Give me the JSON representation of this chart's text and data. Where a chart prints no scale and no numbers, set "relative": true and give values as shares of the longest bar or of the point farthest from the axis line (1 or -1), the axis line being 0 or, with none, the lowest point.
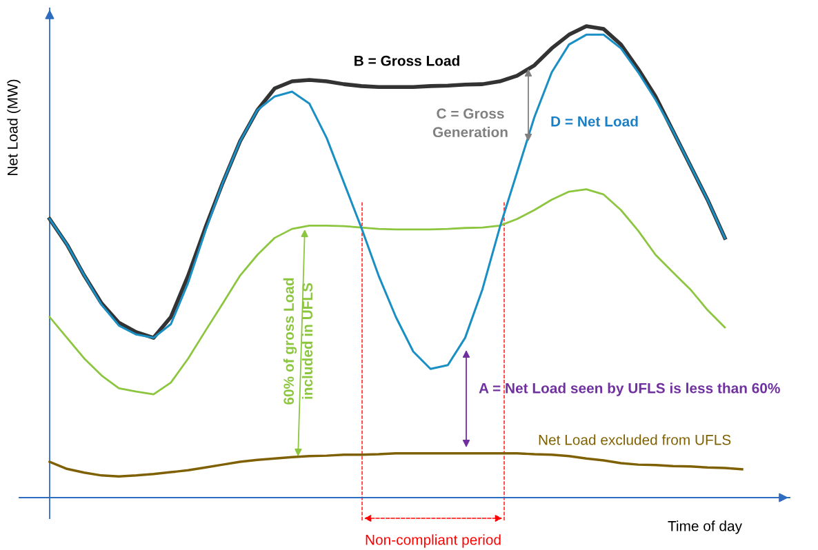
{
  "chart_data": {
    "type": "line",
    "relative": true,
    "xlabel": "Time of day",
    "ylabel": "Net Load (MW)",
    "categories": [
      null,
      null,
      null,
      null,
      null,
      null,
      null,
      null,
      null,
      null,
      null,
      null,
      null,
      null,
      null,
      null,
      null,
      null,
      null,
      null,
      null,
      null,
      null,
      null,
      null,
      null,
      null,
      null,
      null,
      null,
      null,
      null,
      null,
      null,
      null,
      null,
      null,
      null,
      null,
      null,
      null
    ],
    "series": [
      {
        "color": "#333333",
        "values": [
          0.591,
          0.537,
          0.471,
          0.412,
          0.371,
          0.351,
          0.339,
          0.383,
          0.471,
          0.573,
          0.668,
          0.756,
          0.822,
          0.868,
          0.883,
          0.886,
          0.883,
          0.877,
          0.873,
          0.871,
          0.871,
          0.871,
          0.873,
          0.874,
          0.876,
          0.877,
          0.883,
          0.895,
          0.917,
          0.953,
          0.982,
          1,
          0.994,
          0.961,
          0.909,
          0.851,
          0.778,
          0.705,
          0.632,
          0.551,
          null
        ]
      },
      {
        "color": "#1a8fc4",
        "values": [
          0.591,
          0.537,
          0.471,
          0.409,
          0.365,
          0.346,
          0.339,
          0.368,
          0.456,
          0.566,
          0.668,
          0.756,
          0.822,
          0.851,
          0.861,
          0.836,
          0.763,
          0.668,
          0.573,
          0.471,
          0.383,
          0.31,
          0.273,
          0.281,
          0.339,
          0.442,
          0.573,
          0.69,
          0.807,
          0.902,
          0.961,
          0.982,
          0.982,
          0.953,
          0.902,
          0.844,
          0.778,
          0.705,
          0.632,
          0.551,
          null
        ]
      },
      {
        "color": "#8cc63f",
        "values": [
          0.383,
          0.339,
          0.295,
          0.259,
          0.232,
          0.225,
          0.219,
          0.244,
          0.295,
          0.354,
          0.412,
          0.471,
          0.515,
          0.551,
          0.57,
          0.577,
          0.577,
          0.576,
          0.573,
          0.57,
          0.569,
          0.569,
          0.569,
          0.57,
          0.572,
          0.573,
          0.577,
          0.591,
          0.61,
          0.632,
          0.649,
          0.654,
          0.643,
          0.61,
          0.566,
          0.515,
          0.478,
          0.442,
          0.398,
          0.361,
          null
        ]
      },
      {
        "color": "#7f6000",
        "values": [
          0.076,
          0.061,
          0.053,
          0.047,
          0.045,
          0.047,
          0.05,
          0.054,
          0.058,
          0.064,
          0.07,
          0.076,
          0.08,
          0.083,
          0.086,
          0.088,
          0.089,
          0.091,
          0.091,
          0.092,
          0.094,
          0.094,
          0.094,
          0.094,
          0.094,
          0.094,
          0.094,
          0.094,
          0.092,
          0.091,
          0.088,
          0.083,
          0.079,
          0.073,
          0.07,
          0.069,
          0.067,
          0.066,
          0.064,
          0.063,
          0.06
        ]
      }
    ],
    "annotations": [
      "B = Gross Load",
      "C = Gross\nGeneration",
      "D = Net Load",
      "60% of gross Load\nincluded in UFLS",
      "A = Net Load seen by UFLS is less than 60%",
      "Net Load excluded from UFLS",
      "Non-compliant period"
    ]
  }
}
